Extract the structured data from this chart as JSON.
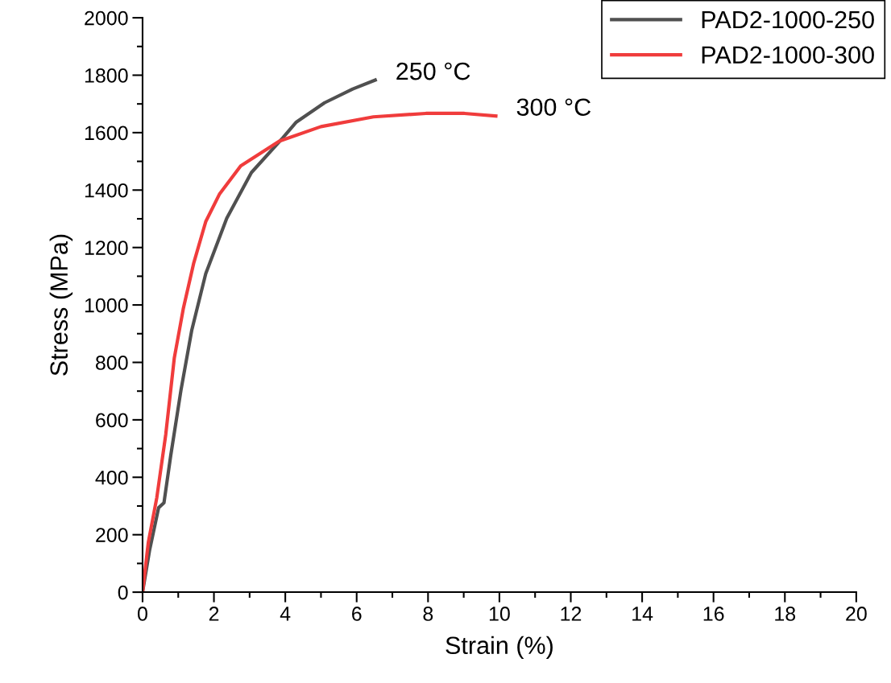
{
  "chart_data": {
    "type": "line",
    "xlabel": "Strain (%)",
    "ylabel": "Stress (MPa)",
    "xlim": [
      0,
      20
    ],
    "xticks": [
      0,
      2,
      4,
      6,
      8,
      10,
      12,
      14,
      16,
      18,
      20
    ],
    "ylim": [
      0,
      2000
    ],
    "yticks": [
      0,
      200,
      400,
      600,
      800,
      1000,
      1200,
      1400,
      1600,
      1800,
      2000
    ],
    "grid": false,
    "legend": "top right",
    "marker": "none",
    "line_style": "solid",
    "series": [
      {
        "name": "PAD2-1000-250",
        "color": "#505050",
        "x": [
          0,
          0.2,
          0.45,
          0.6,
          0.79,
          1.08,
          1.38,
          1.77,
          2.36,
          3.05,
          3.93,
          4.31,
          5.1,
          5.89,
          6.52
        ],
        "values": [
          0,
          148,
          294,
          311,
          476,
          706,
          913,
          1109,
          1302,
          1461,
          1582,
          1637,
          1704,
          1752,
          1783
        ]
      },
      {
        "name": "PAD2-1000-300",
        "color": "#f03c3c",
        "x": [
          0,
          0.16,
          0.4,
          0.65,
          0.89,
          1.14,
          1.43,
          1.77,
          2.16,
          2.75,
          3.83,
          5.0,
          6.47,
          7.94,
          9.02,
          9.9
        ],
        "values": [
          0,
          172,
          330,
          549,
          816,
          986,
          1144,
          1290,
          1387,
          1484,
          1570,
          1621,
          1655,
          1667,
          1667,
          1658
        ]
      }
    ],
    "annotations": [
      {
        "text": "250 °C",
        "x": 6.52,
        "y": 1783
      },
      {
        "text": "300 °C",
        "x": 9.9,
        "y": 1658
      }
    ]
  }
}
